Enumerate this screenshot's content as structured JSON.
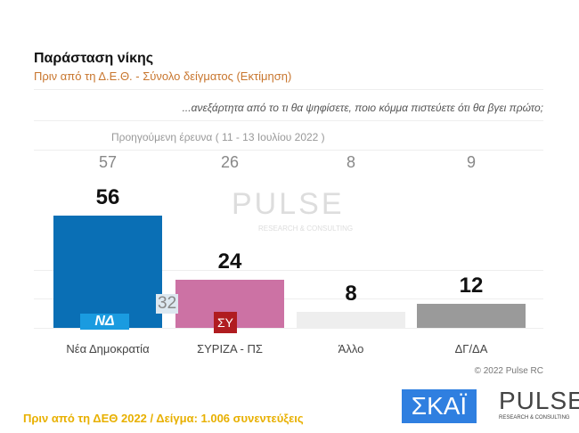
{
  "title": "Παράσταση νίκης",
  "subtitle": "Πριν από τη Δ.Ε.Θ.  -  Σύνολο δείγματος   (Εκτίμηση)",
  "question": "...ανεξάρτητα από το τι θα ψηφίσετε, ποιο κόμμα πιστεύετε ότι θα βγει πρώτο;",
  "previous_label": "Προηγούμενη έρευνα  ( 11 - 13 Ιουλίου  2022 )",
  "overlay_label": "32",
  "copyright": "© 2022 Pulse RC",
  "footer": "Πριν από τη ΔΕΘ  2022  /  Δείγμα:  1.006 συνεντεύξεις",
  "logos": {
    "skai": "ΣΚΑΪ",
    "pulse": "PULSE",
    "pulse_tag": "RESEARCH & CONSULTING",
    "nd": "ΝΔ",
    "syriza": "ΣΥ"
  },
  "chart_data": {
    "type": "bar",
    "categories": [
      "Νέα Δημοκρατία",
      "ΣΥΡΙΖΑ - ΠΣ",
      "Άλλο",
      "ΔΓ/ΔΑ"
    ],
    "values": [
      56,
      24,
      8,
      12
    ],
    "previous_values": [
      57,
      26,
      8,
      9
    ],
    "colors": [
      "#0a6fb5",
      "#cc72a4",
      "#eeeeee",
      "#9a9a9a"
    ],
    "ylim": [
      0,
      60
    ],
    "grid": true
  }
}
